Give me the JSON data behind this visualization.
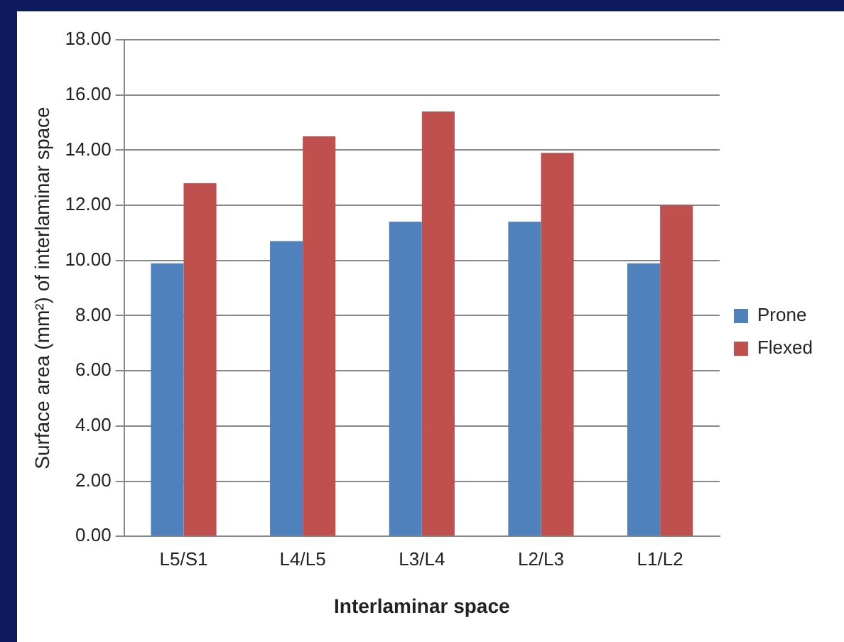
{
  "chart_data": {
    "type": "bar",
    "xlabel": "Interlaminar space",
    "ylabel": "Surface area (mm²) of interlaminar space",
    "categories": [
      "L5/S1",
      "L4/L5",
      "L3/L4",
      "L2/L3",
      "L1/L2"
    ],
    "series": [
      {
        "name": "Prone",
        "color": "#4f81bd",
        "values": [
          9.9,
          10.7,
          11.4,
          11.4,
          9.9
        ]
      },
      {
        "name": "Flexed",
        "color": "#c0504d",
        "values": [
          12.8,
          14.5,
          15.4,
          13.9,
          12.0
        ]
      }
    ],
    "ylim": [
      0,
      18
    ],
    "yticks": [
      {
        "value": 0,
        "label": "0.00"
      },
      {
        "value": 2,
        "label": "2.00"
      },
      {
        "value": 4,
        "label": "4.00"
      },
      {
        "value": 6,
        "label": "6.00"
      },
      {
        "value": 8,
        "label": "8.00"
      },
      {
        "value": 10,
        "label": "10.00"
      },
      {
        "value": 12,
        "label": "12.00"
      },
      {
        "value": 14,
        "label": "14.00"
      },
      {
        "value": 16,
        "label": "16.00"
      },
      {
        "value": 18,
        "label": "18.00"
      }
    ],
    "grid": "y",
    "legend": "right"
  }
}
